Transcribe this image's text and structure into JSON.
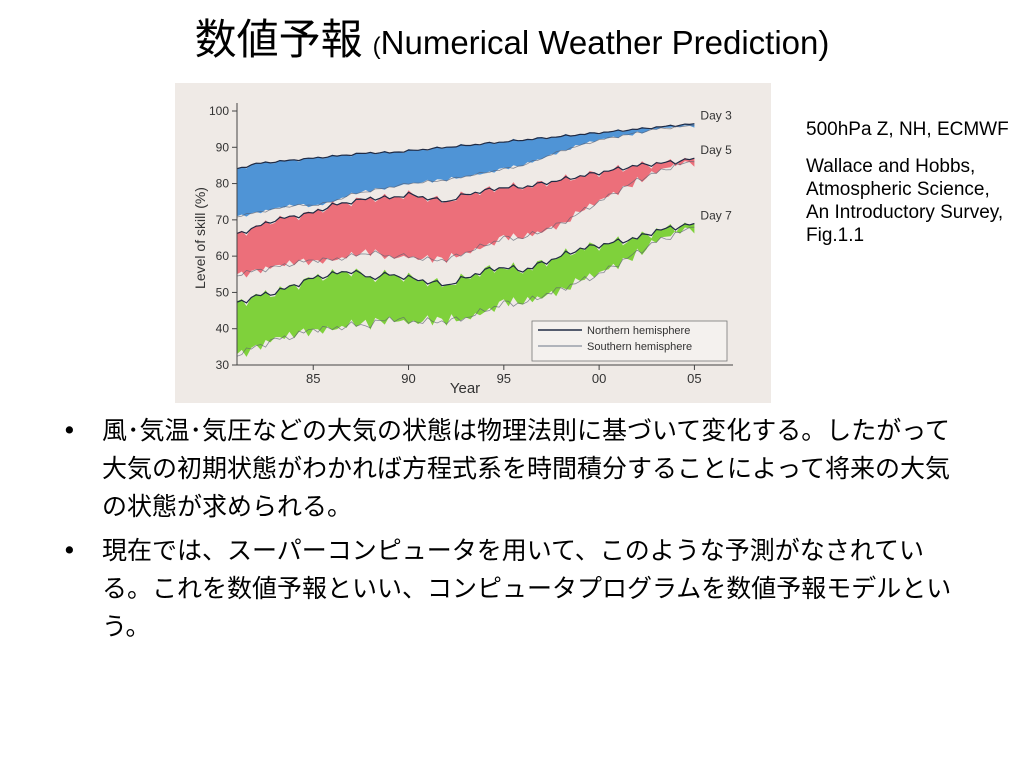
{
  "slide": {
    "title_jp": "数値予報",
    "title_paren_open": "(",
    "title_en": "Numerical Weather Prediction)",
    "caption_line1": "500hPa Z, NH, ECMWF",
    "caption_line2": "Wallace and Hobbs, Atmospheric Science, An Introductory Survey, Fig.1.1",
    "bullet_symbol": "•",
    "bullets": [
      "風･気温･気圧などの大気の状態は物理法則に基づいて変化する。したがって大気の初期状態がわかれば方程式系を時間積分することによって将来の大気の状態が求められる。",
      "現在では、スーパーコンピュータを用いて、このような予測がなされている。これを数値予報といい、コンピュータプログラムを数値予報モデルという。"
    ]
  },
  "chart_data": {
    "type": "area",
    "xlabel": "Year",
    "ylabel": "Level of skill (%)",
    "xlim": [
      1981,
      2006.5
    ],
    "ylim": [
      30,
      100
    ],
    "x_ticks": [
      {
        "value": 1985,
        "label": "85"
      },
      {
        "value": 1990,
        "label": "90"
      },
      {
        "value": 1995,
        "label": "95"
      },
      {
        "value": 2000,
        "label": "00"
      },
      {
        "value": 2005,
        "label": "05"
      }
    ],
    "y_ticks": [
      30,
      40,
      50,
      60,
      70,
      80,
      90,
      100
    ],
    "x": [
      1981,
      1982,
      1983,
      1984,
      1985,
      1986,
      1987,
      1988,
      1989,
      1990,
      1991,
      1992,
      1993,
      1994,
      1995,
      1996,
      1997,
      1998,
      1999,
      2000,
      2001,
      2002,
      2003,
      2004,
      2005
    ],
    "series": [
      {
        "name": "Day 3",
        "color": "#4f94d6",
        "northern": [
          84,
          85.5,
          86,
          86.5,
          87,
          87.5,
          88,
          88.5,
          88.5,
          89,
          89.5,
          90,
          90.5,
          91,
          91.5,
          92,
          92.5,
          93,
          93.5,
          94,
          94.5,
          95,
          95.5,
          96,
          96.5
        ],
        "southern": [
          71,
          72,
          73,
          74,
          74,
          75,
          77,
          78,
          79,
          80,
          80.5,
          81,
          82,
          83,
          84,
          85,
          87,
          89,
          90.5,
          92,
          93,
          94,
          95,
          95.5,
          96
        ]
      },
      {
        "name": "Day 5",
        "color": "#ec6f7a",
        "northern": [
          66,
          68,
          70,
          71,
          72,
          74,
          75,
          76,
          76,
          77,
          76,
          75,
          77,
          78,
          79,
          79,
          80,
          81,
          82,
          83,
          84,
          85,
          85.5,
          86,
          87
        ]
      },
      {
        "name": "Day 7",
        "color": "#7fd13b",
        "northern": [
          47,
          49,
          50,
          52,
          54,
          55,
          56,
          54,
          55,
          54,
          53,
          52,
          54,
          56,
          57,
          56,
          58,
          60,
          62,
          63,
          64,
          65,
          67,
          68,
          69
        ]
      }
    ],
    "day5_southern": [
      55,
      56,
      57,
      58,
      59,
      59,
      60,
      61,
      60,
      60,
      59,
      59,
      61,
      63,
      65,
      65,
      67,
      69,
      72,
      75,
      78,
      81,
      83,
      85,
      86
    ],
    "day7_southern": [
      33,
      35,
      37,
      38,
      40,
      40,
      41,
      41,
      43,
      42,
      42,
      42,
      43,
      45,
      47,
      47,
      49,
      51,
      53,
      55,
      58,
      61,
      64,
      66,
      68
    ],
    "legend": {
      "position": "bottom-right",
      "entries": [
        {
          "label": "Northern hemisphere",
          "color": "#1f2a44"
        },
        {
          "label": "Southern hemisphere",
          "color": "#9aa0aa"
        }
      ]
    },
    "grid": false
  }
}
